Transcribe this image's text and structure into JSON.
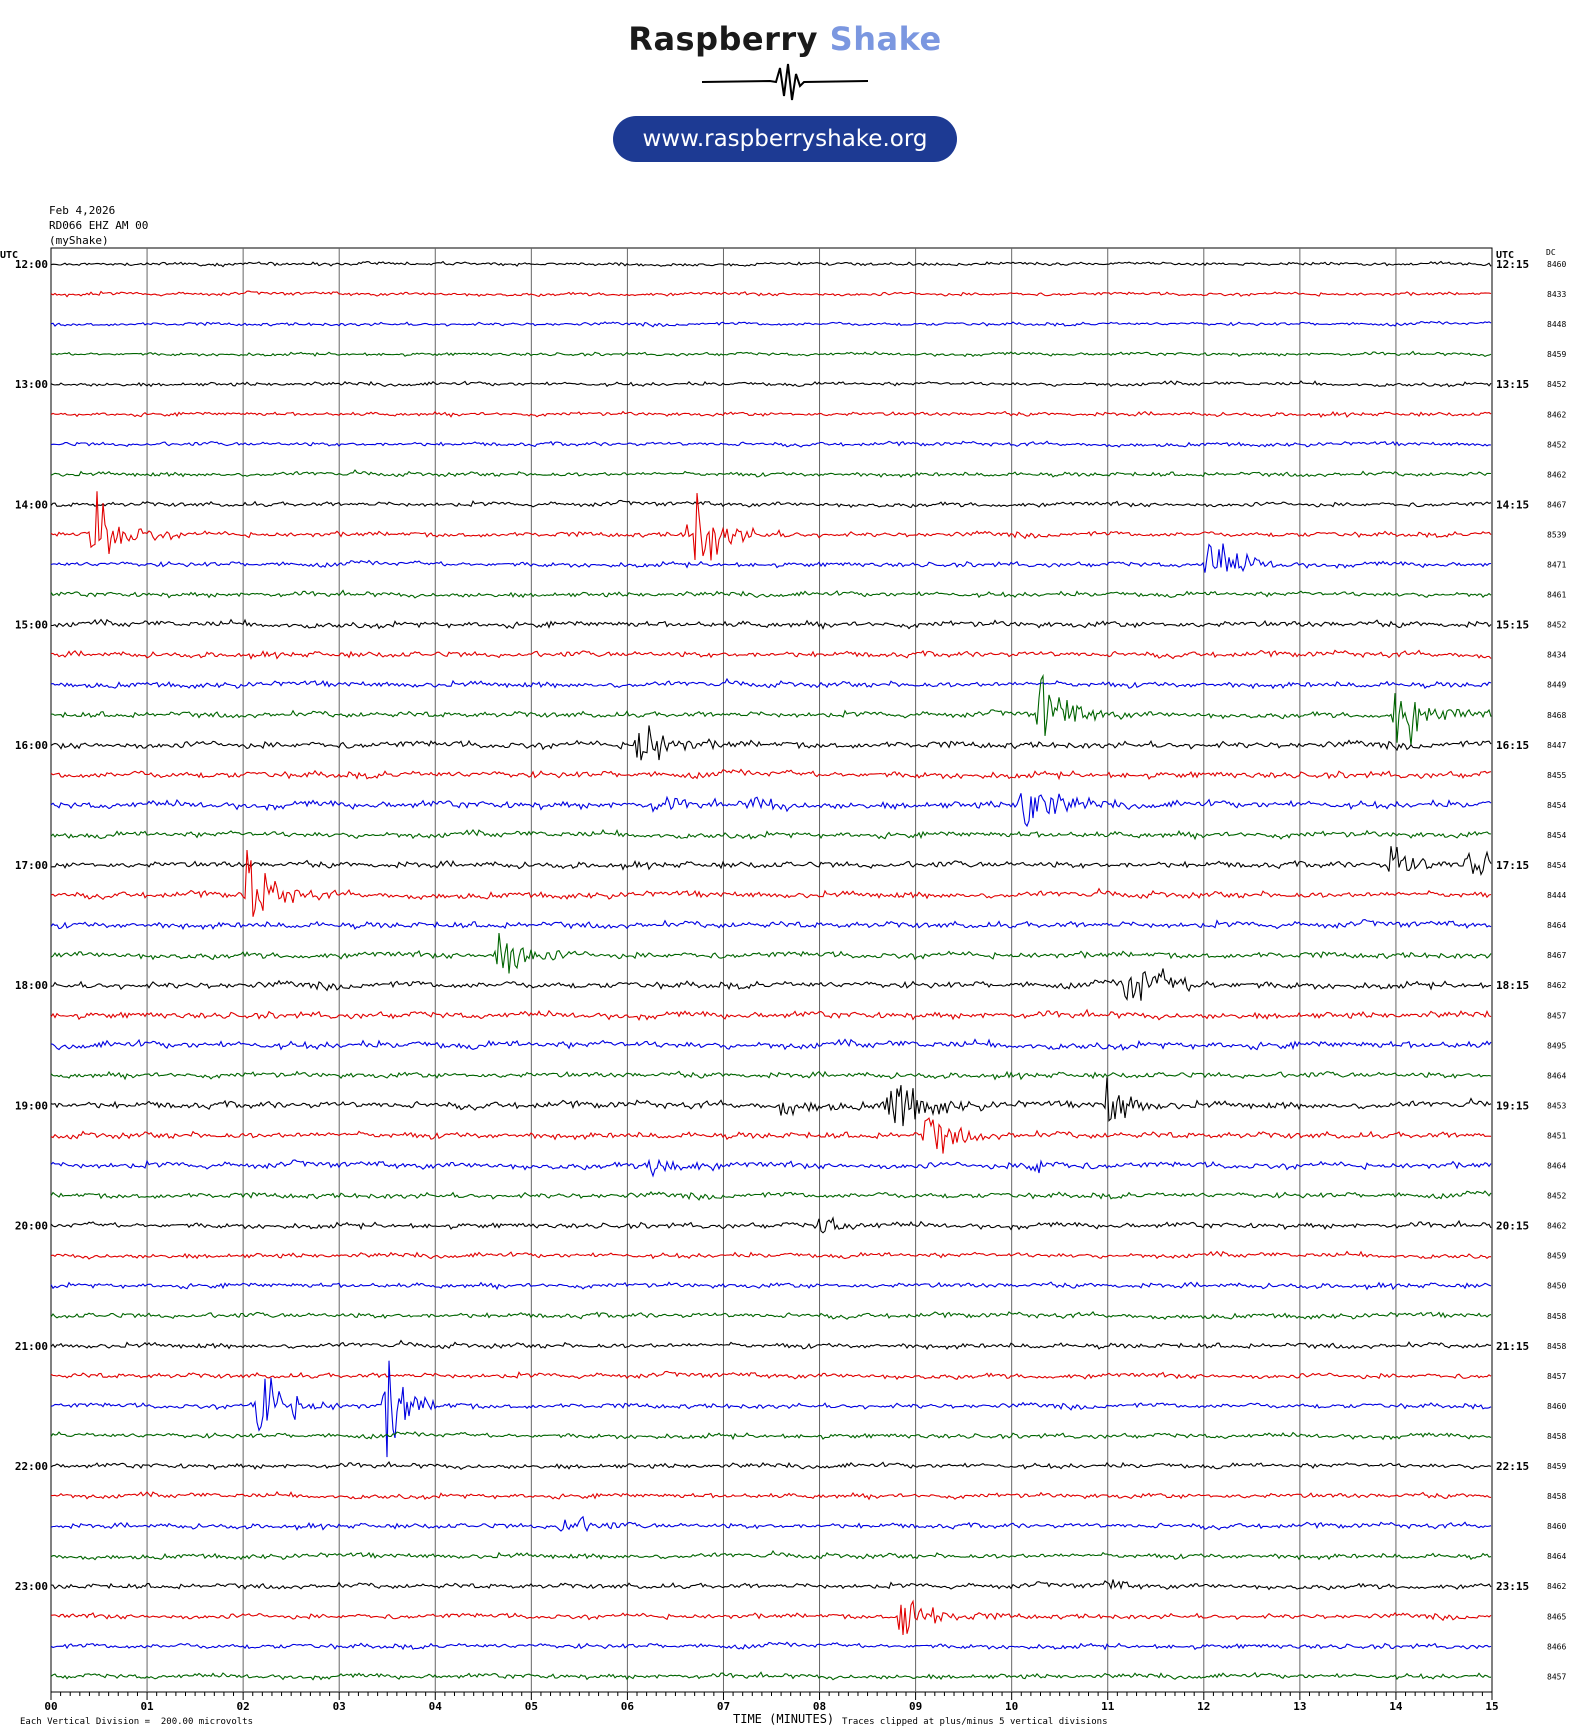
{
  "header": {
    "brand_part1": "Raspberry",
    "brand_part2": "Shake",
    "url": "www.raspberryshake.org"
  },
  "meta": {
    "date": "Feb 4,2026",
    "station": "RD066 EHZ AM 00",
    "network": "(myShake)"
  },
  "chart_data": {
    "type": "line",
    "title": "",
    "xlabel": "TIME (MINUTES)",
    "ylabel": "",
    "left_axis_label": "UTC",
    "right_axis_label": "UTC",
    "dc_label": "DC",
    "x_ticks": [
      "00",
      "01",
      "02",
      "03",
      "04",
      "05",
      "06",
      "07",
      "08",
      "09",
      "10",
      "11",
      "12",
      "13",
      "14",
      "15"
    ],
    "xlim": [
      0,
      15
    ],
    "grid": true,
    "trace_colors": [
      "#000000",
      "#e00000",
      "#0000e0",
      "#006400"
    ],
    "left_hour_labels": [
      "12:00",
      "13:00",
      "14:00",
      "15:00",
      "16:00",
      "17:00",
      "18:00",
      "19:00",
      "20:00",
      "21:00",
      "22:00",
      "23:00"
    ],
    "right_hour_labels": [
      "12:15",
      "13:15",
      "14:15",
      "15:15",
      "16:15",
      "17:15",
      "18:15",
      "19:15",
      "20:15",
      "21:15",
      "22:15",
      "23:15"
    ],
    "dc_values": [
      8460,
      8433,
      8448,
      8459,
      8452,
      8462,
      8452,
      8462,
      8467,
      8539,
      8471,
      8461,
      8452,
      8434,
      8449,
      8468,
      8447,
      8455,
      8454,
      8454,
      8454,
      8444,
      8464,
      8467,
      8462,
      8457,
      8495,
      8464,
      8453,
      8451,
      8464,
      8452,
      8462,
      8459,
      8450,
      8458,
      8458,
      8457,
      8460,
      8458,
      8459,
      8458,
      8460,
      8464,
      8462,
      8465,
      8466,
      8457
    ],
    "noise_levels": [
      1.2,
      1.2,
      1.2,
      1.2,
      1.4,
      1.4,
      1.4,
      1.5,
      1.6,
      1.8,
      1.8,
      1.8,
      2.2,
      2.0,
      2.0,
      2.0,
      2.4,
      2.4,
      2.6,
      2.2,
      2.2,
      2.2,
      2.2,
      2.2,
      2.4,
      2.4,
      2.6,
      2.0,
      2.4,
      2.2,
      2.2,
      2.0,
      2.0,
      1.8,
      1.8,
      1.8,
      1.8,
      1.8,
      1.8,
      1.8,
      1.8,
      1.8,
      1.8,
      1.8,
      1.8,
      1.8,
      1.8,
      1.8
    ],
    "events": [
      {
        "trace": 9,
        "t": 0.45,
        "amp": 45,
        "dur": 0.5
      },
      {
        "trace": 9,
        "t": 6.65,
        "amp": 45,
        "dur": 0.55
      },
      {
        "trace": 10,
        "t": 12.05,
        "amp": 30,
        "dur": 0.5
      },
      {
        "trace": 15,
        "t": 10.3,
        "amp": 40,
        "dur": 0.5
      },
      {
        "trace": 15,
        "t": 14.0,
        "amp": 30,
        "dur": 0.6
      },
      {
        "trace": 16,
        "t": 6.1,
        "amp": 30,
        "dur": 0.5
      },
      {
        "trace": 18,
        "t": 10.1,
        "amp": 40,
        "dur": 0.5
      },
      {
        "trace": 18,
        "t": 6.3,
        "amp": 10,
        "dur": 0.3
      },
      {
        "trace": 18,
        "t": 7.3,
        "amp": 10,
        "dur": 0.4
      },
      {
        "trace": 20,
        "t": 13.95,
        "amp": 25,
        "dur": 0.4
      },
      {
        "trace": 20,
        "t": 14.75,
        "amp": 20,
        "dur": 0.4
      },
      {
        "trace": 21,
        "t": 2.05,
        "amp": 45,
        "dur": 0.45
      },
      {
        "trace": 23,
        "t": 4.65,
        "amp": 30,
        "dur": 0.5
      },
      {
        "trace": 24,
        "t": 11.2,
        "amp": 25,
        "dur": 0.8
      },
      {
        "trace": 28,
        "t": 8.7,
        "amp": 35,
        "dur": 0.6
      },
      {
        "trace": 28,
        "t": 11.0,
        "amp": 25,
        "dur": 0.4
      },
      {
        "trace": 28,
        "t": 7.6,
        "amp": 8,
        "dur": 0.6
      },
      {
        "trace": 29,
        "t": 9.1,
        "amp": 25,
        "dur": 0.5
      },
      {
        "trace": 30,
        "t": 6.25,
        "amp": 15,
        "dur": 0.5
      },
      {
        "trace": 30,
        "t": 10.2,
        "amp": 10,
        "dur": 0.4
      },
      {
        "trace": 32,
        "t": 8.0,
        "amp": 10,
        "dur": 0.5
      },
      {
        "trace": 38,
        "t": 2.15,
        "amp": 45,
        "dur": 0.5
      },
      {
        "trace": 38,
        "t": 3.5,
        "amp": 45,
        "dur": 0.4
      },
      {
        "trace": 42,
        "t": 5.3,
        "amp": 12,
        "dur": 0.5
      },
      {
        "trace": 45,
        "t": 8.85,
        "amp": 25,
        "dur": 0.6
      },
      {
        "trace": 44,
        "t": 11.0,
        "amp": 6,
        "dur": 0.3
      }
    ]
  },
  "footer": {
    "division_note": "Each Vertical Division =  200.00 microvolts",
    "clip_note": "Traces clipped at plus/minus 5 vertical divisions"
  }
}
